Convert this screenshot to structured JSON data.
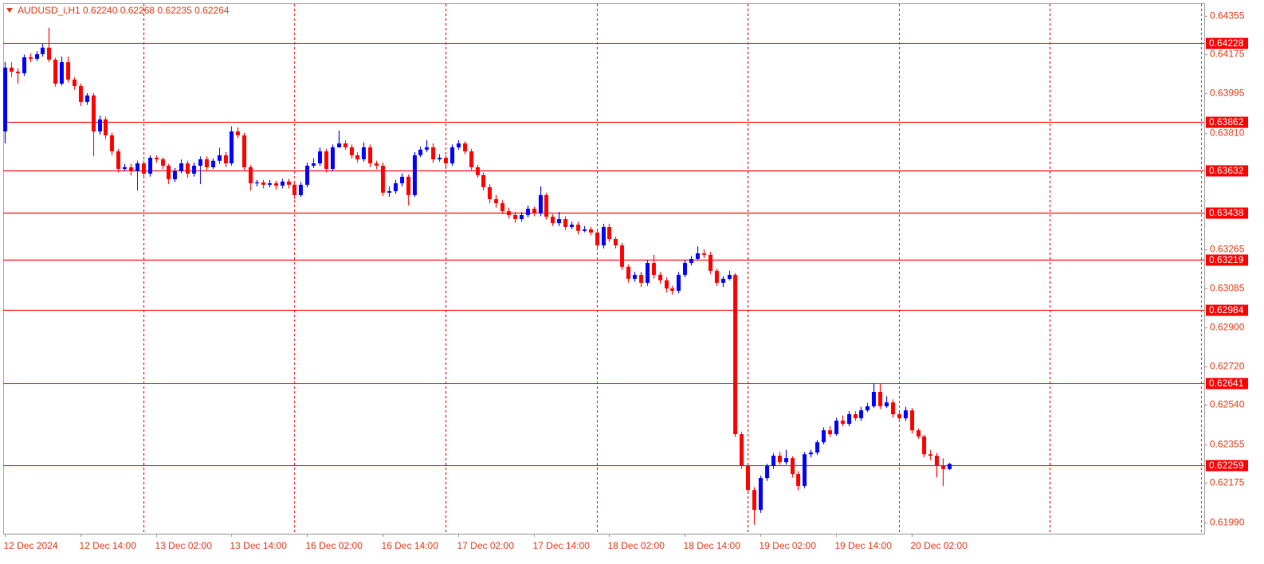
{
  "chart_data": {
    "type": "candlestick",
    "title": "AUDUSD_i,H1  0.62240 0.62268 0.62235 0.62264",
    "up_color": "#0000ff",
    "down_color": "#ff0000",
    "level_color": "#ff0000",
    "ylim": [
      0.61938,
      0.64411
    ],
    "yticks": [
      0.64355,
      0.64175,
      0.63995,
      {
        "value": 0.6381,
        "label": "0.63810"
      },
      0.63265,
      0.63085,
      {
        "value": 0.629,
        "label": "0.62900"
      },
      {
        "value": 0.6272,
        "label": "0.62720"
      },
      {
        "value": 0.6254,
        "label": "0.62540"
      },
      0.62355,
      0.62175,
      {
        "value": 0.6199,
        "label": "0.61990"
      }
    ],
    "levels": [
      0.64228,
      0.63862,
      0.63632,
      0.63438,
      0.63219,
      0.62984,
      0.62641,
      0.62259
    ],
    "categories": [
      "12 Dec 2024",
      null,
      null,
      null,
      null,
      null,
      null,
      null,
      null,
      null,
      null,
      null,
      "12 Dec 14:00",
      null,
      null,
      null,
      null,
      null,
      null,
      null,
      null,
      null,
      null,
      null,
      "13 Dec 02:00",
      null,
      null,
      null,
      null,
      null,
      null,
      null,
      null,
      null,
      null,
      null,
      "13 Dec 14:00",
      null,
      null,
      null,
      null,
      null,
      null,
      null,
      null,
      null,
      null,
      null,
      "16 Dec 02:00",
      null,
      null,
      null,
      null,
      null,
      null,
      null,
      null,
      null,
      null,
      null,
      "16 Dec 14:00",
      null,
      null,
      null,
      null,
      null,
      null,
      null,
      null,
      null,
      null,
      null,
      "17 Dec 02:00",
      null,
      null,
      null,
      null,
      null,
      null,
      null,
      null,
      null,
      null,
      null,
      "17 Dec 14:00",
      null,
      null,
      null,
      null,
      null,
      null,
      null,
      null,
      null,
      null,
      null,
      "18 Dec 02:00",
      null,
      null,
      null,
      null,
      null,
      null,
      null,
      null,
      null,
      null,
      null,
      "18 Dec 14:00",
      null,
      null,
      null,
      null,
      null,
      null,
      null,
      null,
      null,
      null,
      null,
      "19 Dec 02:00",
      null,
      null,
      null,
      null,
      null,
      null,
      null,
      null,
      null,
      null,
      null,
      "19 Dec 14:00",
      null,
      null,
      null,
      null,
      null,
      null,
      null,
      null,
      null,
      null,
      null,
      "20 Dec 02:00",
      null,
      null,
      null,
      null,
      null,
      null
    ],
    "ohlc": [
      [
        0.63816,
        0.6414,
        0.6376,
        0.64114
      ],
      [
        0.64114,
        0.6414,
        0.6407,
        0.64095
      ],
      [
        0.64095,
        0.6411,
        0.6404,
        0.64088
      ],
      [
        0.64088,
        0.64175,
        0.64075,
        0.64162
      ],
      [
        0.64162,
        0.6418,
        0.6414,
        0.64155
      ],
      [
        0.64155,
        0.6419,
        0.64145,
        0.64177
      ],
      [
        0.64177,
        0.64225,
        0.64165,
        0.64207
      ],
      [
        0.64207,
        0.643,
        0.6414,
        0.64151
      ],
      [
        0.64151,
        0.6416,
        0.64025,
        0.64039
      ],
      [
        0.64039,
        0.64165,
        0.6403,
        0.6414
      ],
      [
        0.6414,
        0.64165,
        0.64045,
        0.64058
      ],
      [
        0.64058,
        0.6407,
        0.6401,
        0.64028
      ],
      [
        0.64028,
        0.6404,
        0.63935,
        0.63954
      ],
      [
        0.63954,
        0.63995,
        0.6394,
        0.63984
      ],
      [
        0.63984,
        0.63995,
        0.637,
        0.63816
      ],
      [
        0.63816,
        0.6389,
        0.638,
        0.63872
      ],
      [
        0.63872,
        0.63885,
        0.6378,
        0.63798
      ],
      [
        0.63798,
        0.6381,
        0.63705,
        0.63723
      ],
      [
        0.63723,
        0.63735,
        0.63625,
        0.63641
      ],
      [
        0.63641,
        0.63665,
        0.6363,
        0.63649
      ],
      [
        0.63649,
        0.63665,
        0.6361,
        0.6363
      ],
      [
        0.6363,
        0.6368,
        0.6354,
        0.63667
      ],
      [
        0.63667,
        0.6368,
        0.636,
        0.63619
      ],
      [
        0.63619,
        0.63705,
        0.63605,
        0.63693
      ],
      [
        0.63693,
        0.63705,
        0.6367,
        0.63686
      ],
      [
        0.63686,
        0.63695,
        0.6364,
        0.63656
      ],
      [
        0.63656,
        0.63665,
        0.6357,
        0.63593
      ],
      [
        0.63593,
        0.63645,
        0.6358,
        0.6363
      ],
      [
        0.6363,
        0.63685,
        0.6362,
        0.63667
      ],
      [
        0.63667,
        0.6368,
        0.636,
        0.63619
      ],
      [
        0.63619,
        0.6367,
        0.63605,
        0.63656
      ],
      [
        0.63656,
        0.637,
        0.6357,
        0.63686
      ],
      [
        0.63686,
        0.637,
        0.63635,
        0.63649
      ],
      [
        0.63649,
        0.6369,
        0.6364,
        0.63679
      ],
      [
        0.63679,
        0.6374,
        0.63665,
        0.63705
      ],
      [
        0.63705,
        0.6372,
        0.6365,
        0.63667
      ],
      [
        0.63667,
        0.6384,
        0.63655,
        0.63816
      ],
      [
        0.63816,
        0.63835,
        0.63785,
        0.63798
      ],
      [
        0.63798,
        0.6381,
        0.63635,
        0.63649
      ],
      [
        0.63649,
        0.6366,
        0.6354,
        0.63574
      ],
      [
        0.63574,
        0.6359,
        0.6356,
        0.63578
      ],
      [
        0.63578,
        0.6359,
        0.6355,
        0.63567
      ],
      [
        0.63567,
        0.6359,
        0.63555,
        0.63574
      ],
      [
        0.63574,
        0.63585,
        0.63545,
        0.63563
      ],
      [
        0.63563,
        0.63595,
        0.6355,
        0.63582
      ],
      [
        0.63582,
        0.63595,
        0.6355,
        0.63567
      ],
      [
        0.63567,
        0.6358,
        0.635,
        0.63519
      ],
      [
        0.63519,
        0.6358,
        0.6351,
        0.63567
      ],
      [
        0.63567,
        0.6367,
        0.63555,
        0.63656
      ],
      [
        0.63656,
        0.6369,
        0.63645,
        0.63667
      ],
      [
        0.63667,
        0.6374,
        0.63655,
        0.63723
      ],
      [
        0.63723,
        0.63735,
        0.63625,
        0.63641
      ],
      [
        0.63641,
        0.63755,
        0.6363,
        0.63742
      ],
      [
        0.63742,
        0.6382,
        0.6374,
        0.6376
      ],
      [
        0.6376,
        0.63775,
        0.6373,
        0.63742
      ],
      [
        0.63742,
        0.63755,
        0.6369,
        0.63705
      ],
      [
        0.63705,
        0.6372,
        0.6367,
        0.63686
      ],
      [
        0.63686,
        0.63765,
        0.63675,
        0.63742
      ],
      [
        0.63742,
        0.63755,
        0.6365,
        0.63667
      ],
      [
        0.63667,
        0.6368,
        0.6364,
        0.63656
      ],
      [
        0.63656,
        0.6367,
        0.63515,
        0.6353
      ],
      [
        0.6353,
        0.6356,
        0.6351,
        0.63537
      ],
      [
        0.63537,
        0.6359,
        0.63525,
        0.63574
      ],
      [
        0.63574,
        0.6362,
        0.6356,
        0.63604
      ],
      [
        0.63604,
        0.63615,
        0.6347,
        0.63519
      ],
      [
        0.63519,
        0.6372,
        0.6351,
        0.63705
      ],
      [
        0.63705,
        0.63745,
        0.63695,
        0.63731
      ],
      [
        0.63731,
        0.63775,
        0.6372,
        0.63742
      ],
      [
        0.63742,
        0.6376,
        0.6367,
        0.63686
      ],
      [
        0.63686,
        0.6371,
        0.63675,
        0.63693
      ],
      [
        0.63693,
        0.63705,
        0.6365,
        0.63667
      ],
      [
        0.63667,
        0.63755,
        0.63655,
        0.63742
      ],
      [
        0.63742,
        0.63775,
        0.6373,
        0.6376
      ],
      [
        0.6376,
        0.6377,
        0.6371,
        0.63723
      ],
      [
        0.63723,
        0.63735,
        0.63635,
        0.63649
      ],
      [
        0.63649,
        0.6366,
        0.636,
        0.63612
      ],
      [
        0.63612,
        0.63625,
        0.6354,
        0.63556
      ],
      [
        0.63556,
        0.6357,
        0.6348,
        0.635
      ],
      [
        0.635,
        0.6352,
        0.6346,
        0.63481
      ],
      [
        0.63481,
        0.63495,
        0.6343,
        0.63444
      ],
      [
        0.63444,
        0.6346,
        0.6341,
        0.63426
      ],
      [
        0.63426,
        0.6344,
        0.6339,
        0.63407
      ],
      [
        0.63407,
        0.6344,
        0.63395,
        0.63426
      ],
      [
        0.63426,
        0.6347,
        0.63415,
        0.63455
      ],
      [
        0.63455,
        0.63465,
        0.6342,
        0.63433
      ],
      [
        0.63433,
        0.6356,
        0.6342,
        0.63519
      ],
      [
        0.63519,
        0.6353,
        0.63405,
        0.63418
      ],
      [
        0.63418,
        0.6343,
        0.63375,
        0.63388
      ],
      [
        0.63388,
        0.6344,
        0.63375,
        0.63407
      ],
      [
        0.63407,
        0.6342,
        0.63355,
        0.6337
      ],
      [
        0.6337,
        0.63395,
        0.6336,
        0.63381
      ],
      [
        0.63381,
        0.63395,
        0.63335,
        0.63352
      ],
      [
        0.63352,
        0.63375,
        0.63345,
        0.63359
      ],
      [
        0.63359,
        0.6337,
        0.6333,
        0.63344
      ],
      [
        0.63344,
        0.63355,
        0.6327,
        0.63284
      ],
      [
        0.63284,
        0.63385,
        0.6327,
        0.6337
      ],
      [
        0.6337,
        0.63385,
        0.633,
        0.63314
      ],
      [
        0.63314,
        0.63325,
        0.6327,
        0.63284
      ],
      [
        0.63284,
        0.63295,
        0.6317,
        0.63184
      ],
      [
        0.63184,
        0.63195,
        0.6311,
        0.63128
      ],
      [
        0.63128,
        0.6316,
        0.63115,
        0.63146
      ],
      [
        0.63146,
        0.6316,
        0.6309,
        0.63109
      ],
      [
        0.63109,
        0.63215,
        0.63095,
        0.63202
      ],
      [
        0.63202,
        0.6324,
        0.6313,
        0.63146
      ],
      [
        0.63146,
        0.6316,
        0.63105,
        0.63121
      ],
      [
        0.63121,
        0.63135,
        0.63065,
        0.63083
      ],
      [
        0.63083,
        0.63095,
        0.63055,
        0.63072
      ],
      [
        0.63072,
        0.6316,
        0.6306,
        0.63146
      ],
      [
        0.63146,
        0.63215,
        0.63135,
        0.63202
      ],
      [
        0.63202,
        0.63235,
        0.6319,
        0.63221
      ],
      [
        0.63221,
        0.6328,
        0.63215,
        0.63247
      ],
      [
        0.63247,
        0.63265,
        0.63225,
        0.6324
      ],
      [
        0.6324,
        0.63255,
        0.6315,
        0.63165
      ],
      [
        0.63165,
        0.63175,
        0.63095,
        0.63109
      ],
      [
        0.63109,
        0.6314,
        0.6309,
        0.63128
      ],
      [
        0.63128,
        0.63165,
        0.6312,
        0.63146
      ],
      [
        0.63146,
        0.63155,
        0.6239,
        0.62403
      ],
      [
        0.62403,
        0.62415,
        0.6224,
        0.62254
      ],
      [
        0.62254,
        0.62265,
        0.62125,
        0.62142
      ],
      [
        0.62142,
        0.62155,
        0.6198,
        0.62049
      ],
      [
        0.62049,
        0.6221,
        0.62035,
        0.62198
      ],
      [
        0.62198,
        0.62265,
        0.62185,
        0.62254
      ],
      [
        0.62254,
        0.62315,
        0.6224,
        0.62302
      ],
      [
        0.62302,
        0.6232,
        0.6226,
        0.62272
      ],
      [
        0.62272,
        0.6233,
        0.6226,
        0.62291
      ],
      [
        0.62291,
        0.623,
        0.622,
        0.62217
      ],
      [
        0.62217,
        0.6223,
        0.6214,
        0.62161
      ],
      [
        0.62161,
        0.6232,
        0.6215,
        0.62309
      ],
      [
        0.62309,
        0.6233,
        0.62295,
        0.62317
      ],
      [
        0.62317,
        0.62375,
        0.62305,
        0.62365
      ],
      [
        0.62365,
        0.62435,
        0.62355,
        0.62421
      ],
      [
        0.62421,
        0.6244,
        0.6239,
        0.62403
      ],
      [
        0.62403,
        0.6248,
        0.62395,
        0.62466
      ],
      [
        0.62466,
        0.6249,
        0.6244,
        0.62451
      ],
      [
        0.62451,
        0.6251,
        0.6244,
        0.62496
      ],
      [
        0.62496,
        0.6251,
        0.62465,
        0.62477
      ],
      [
        0.62477,
        0.6253,
        0.62465,
        0.62514
      ],
      [
        0.62514,
        0.6255,
        0.62505,
        0.62533
      ],
      [
        0.62533,
        0.6264,
        0.62525,
        0.626
      ],
      [
        0.626,
        0.6264,
        0.6252,
        0.62533
      ],
      [
        0.62533,
        0.6258,
        0.62525,
        0.62551
      ],
      [
        0.62551,
        0.62565,
        0.6248,
        0.62496
      ],
      [
        0.62496,
        0.6251,
        0.62465,
        0.62477
      ],
      [
        0.62477,
        0.6253,
        0.62465,
        0.62514
      ],
      [
        0.62514,
        0.62525,
        0.62405,
        0.62421
      ],
      [
        0.62421,
        0.6243,
        0.6238,
        0.62392
      ],
      [
        0.62392,
        0.624,
        0.62295,
        0.62309
      ],
      [
        0.62309,
        0.6233,
        0.6228,
        0.62302
      ],
      [
        0.62302,
        0.62315,
        0.622,
        0.62254
      ],
      [
        0.62254,
        0.6229,
        0.6216,
        0.6224
      ],
      [
        0.6224,
        0.62268,
        0.62235,
        0.62264
      ]
    ]
  }
}
